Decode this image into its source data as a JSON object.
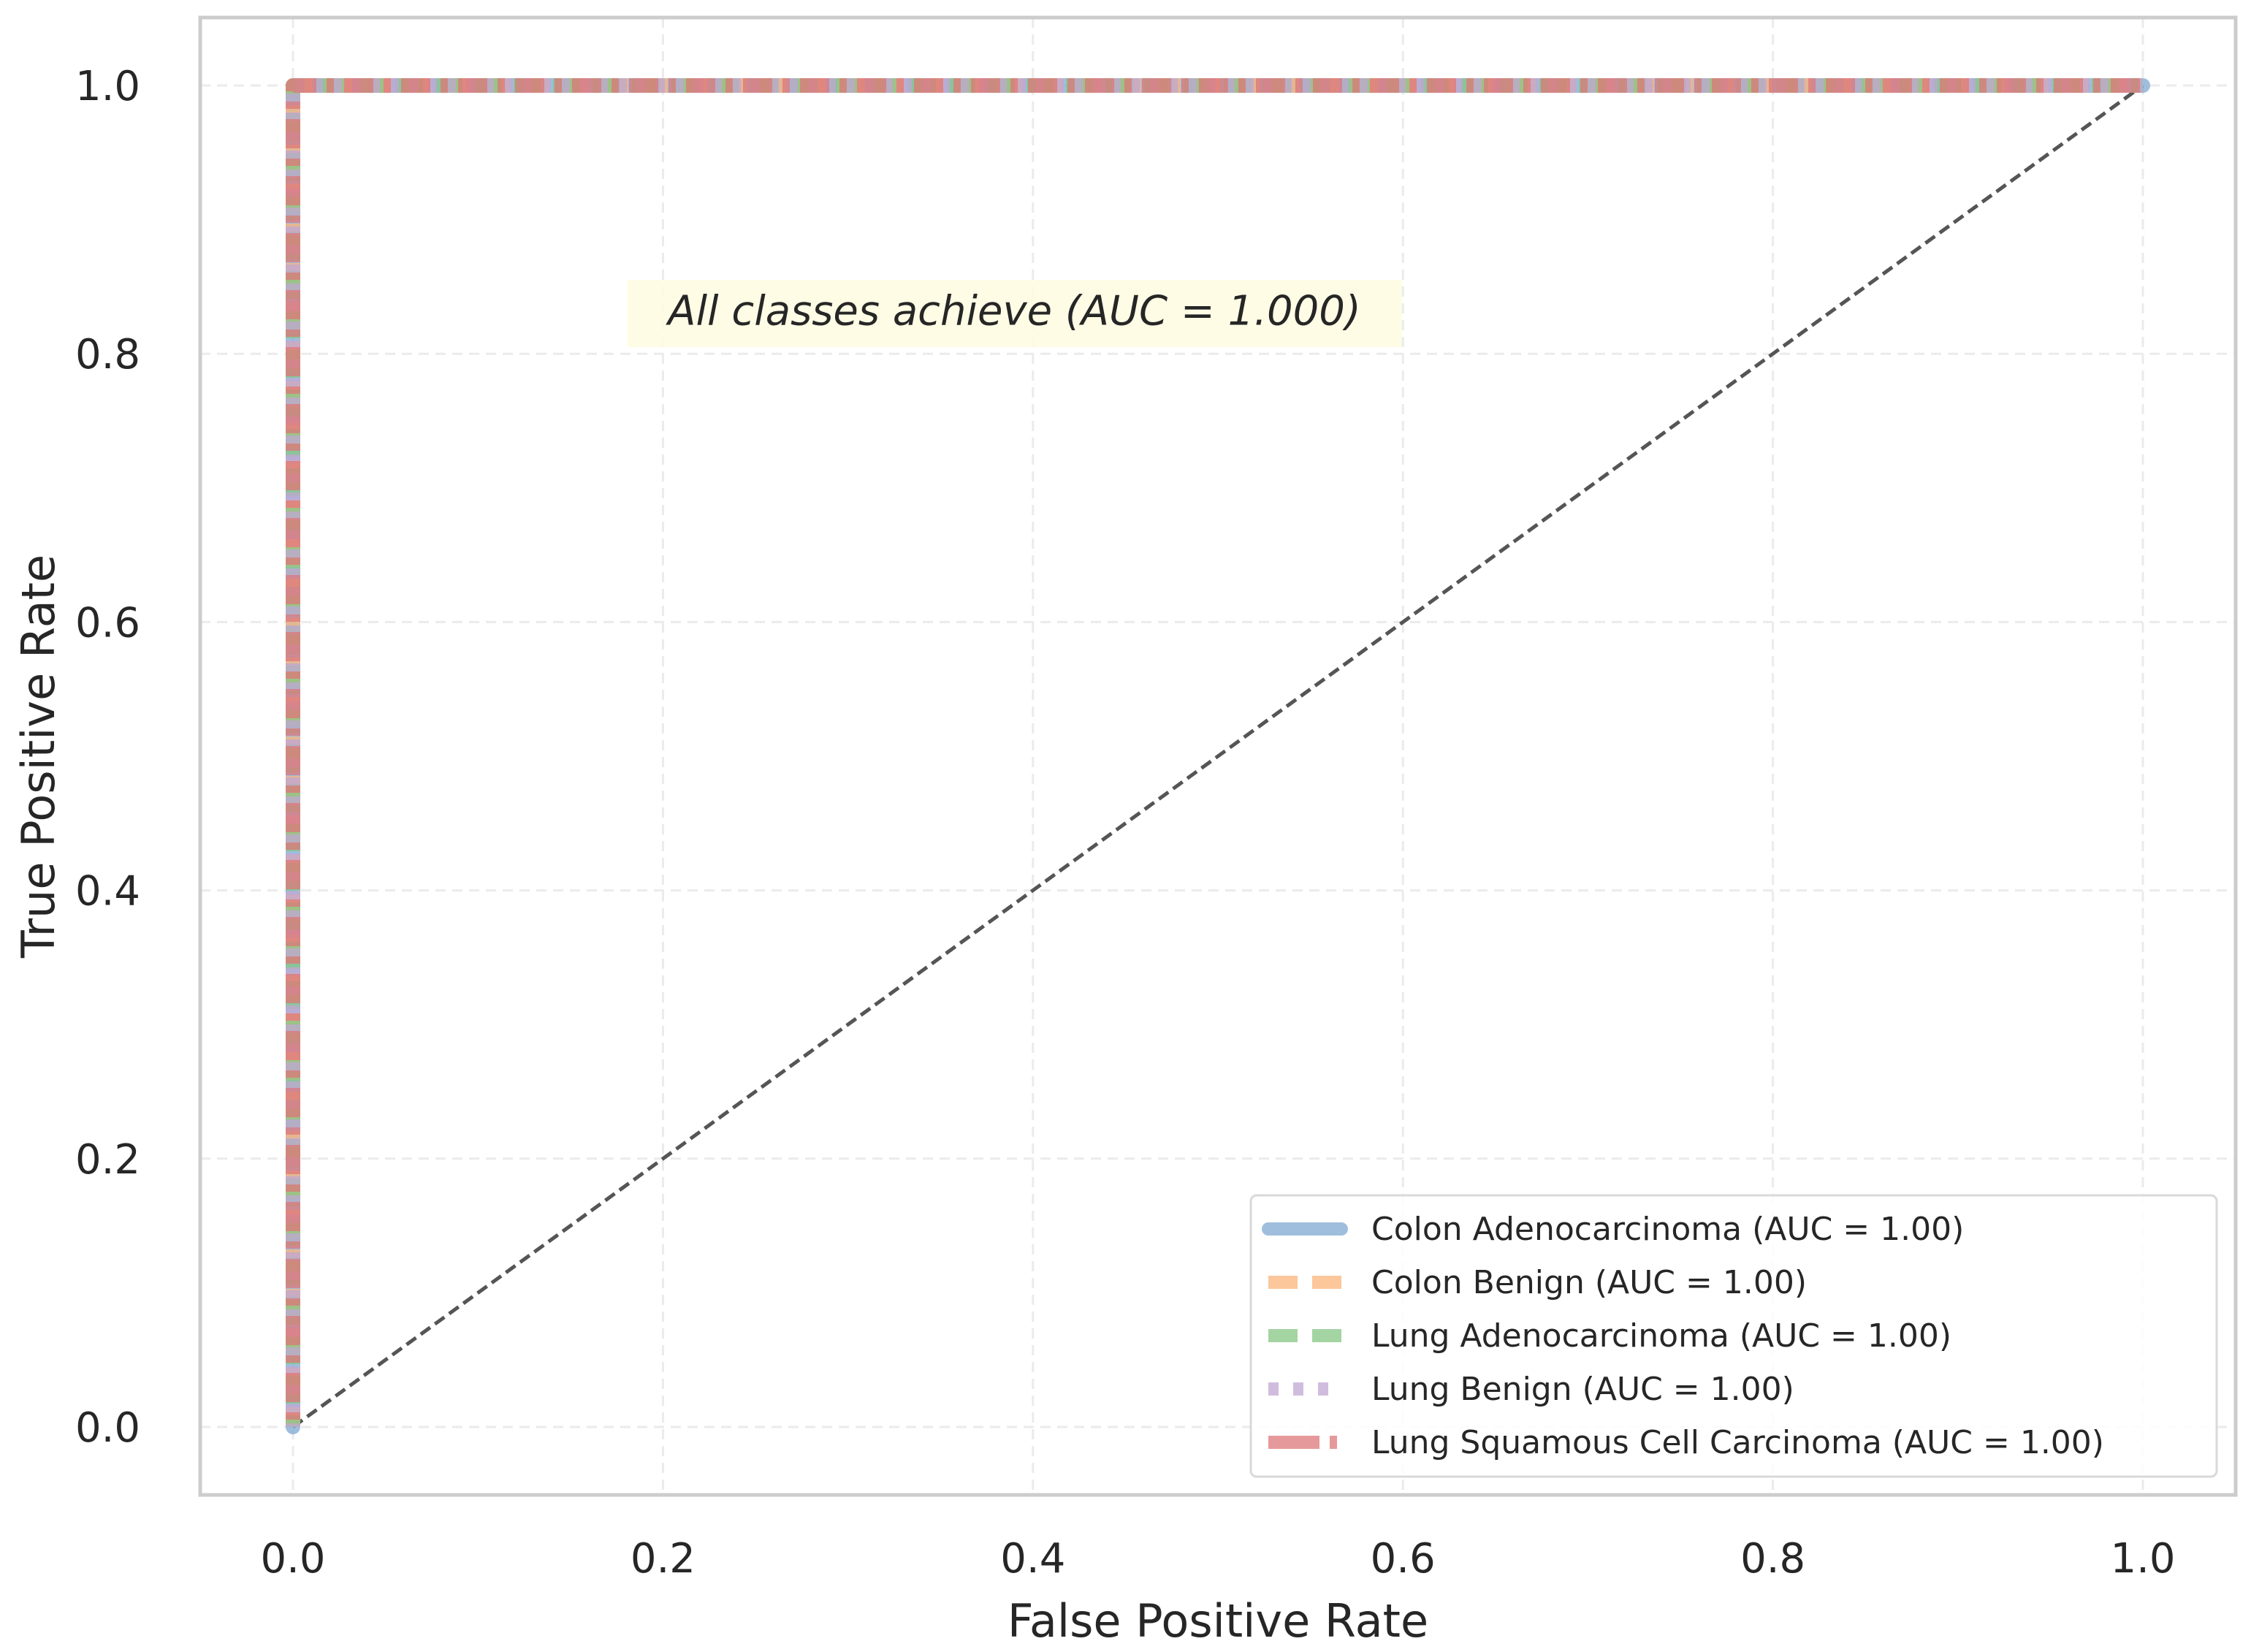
{
  "chart_data": {
    "type": "line",
    "title": "",
    "xlabel": "False Positive Rate",
    "ylabel": "True Positive Rate",
    "xlim": [
      -0.05,
      1.05
    ],
    "ylim": [
      -0.05,
      1.05
    ],
    "x_ticks": [
      0.0,
      0.2,
      0.4,
      0.6,
      0.8,
      1.0
    ],
    "y_ticks": [
      0.0,
      0.2,
      0.4,
      0.6,
      0.8,
      1.0
    ],
    "x_tick_labels": [
      "0.0",
      "0.2",
      "0.4",
      "0.6",
      "0.8",
      "1.0"
    ],
    "y_tick_labels": [
      "0.0",
      "0.2",
      "0.4",
      "0.6",
      "0.8",
      "1.0"
    ],
    "grid": true,
    "legend_position": "lower-right",
    "series": [
      {
        "name": "Colon Adenocarcinoma (AUC = 1.00)",
        "color": "#7fa8d1",
        "dash": "solid",
        "x": [
          0.0,
          0.0,
          1.0
        ],
        "y": [
          0.0,
          1.0,
          1.0
        ]
      },
      {
        "name": "Colon Benign (AUC = 1.00)",
        "color": "#fbb47a",
        "dash": "dashed",
        "x": [
          0.0,
          0.0,
          1.0
        ],
        "y": [
          0.0,
          1.0,
          1.0
        ]
      },
      {
        "name": "Lung Adenocarcinoma (AUC = 1.00)",
        "color": "#86c583",
        "dash": "dashed",
        "x": [
          0.0,
          0.0,
          1.0
        ],
        "y": [
          0.0,
          1.0,
          1.0
        ]
      },
      {
        "name": "Lung Benign (AUC = 1.00)",
        "color": "#c0a7d3",
        "dash": "dotted",
        "x": [
          0.0,
          0.0,
          1.0
        ],
        "y": [
          0.0,
          1.0,
          1.0
        ]
      },
      {
        "name": "Lung Squamous Cell Carcinoma (AUC = 1.00)",
        "color": "#dd7778",
        "dash": "dashdot",
        "x": [
          0.0,
          0.0,
          1.0
        ],
        "y": [
          0.0,
          1.0,
          1.0
        ]
      }
    ],
    "reference_line": {
      "x": [
        0.0,
        1.0
      ],
      "y": [
        0.0,
        1.0
      ],
      "color": "#555555",
      "dash": "dashed"
    },
    "annotation": {
      "text": "All classes achieve (AUC = 1.000)",
      "x": 0.39,
      "y": 0.83,
      "background": "#fffbe0"
    }
  }
}
